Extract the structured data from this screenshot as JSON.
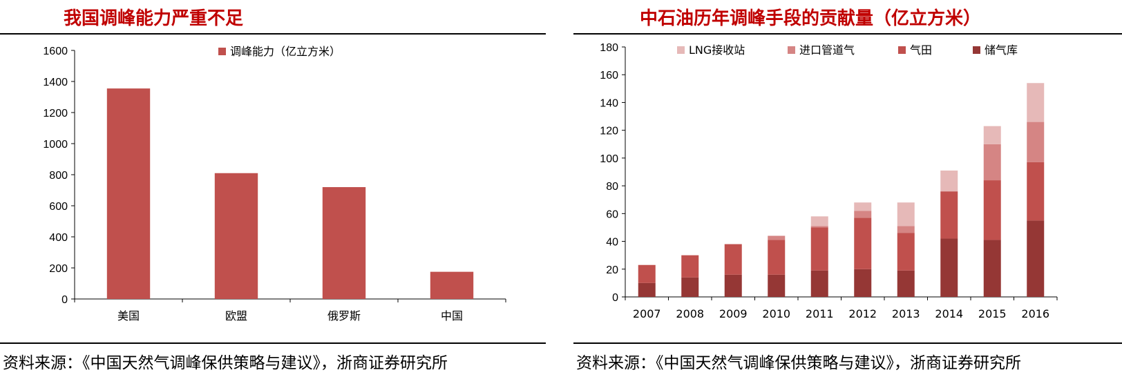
{
  "left_panel": {
    "title": "我国调峰能力严重不足",
    "source": "资料来源：《中国天然气调峰保供策略与建议》，浙商证券研究所"
  },
  "right_panel": {
    "title": "中石油历年调峰手段的贡献量（亿立方米）",
    "source": "资料来源：《中国天然气调峰保供策略与建议》，浙商证券研究所"
  },
  "chart_data": [
    {
      "type": "bar",
      "title": "我国调峰能力严重不足",
      "categories": [
        "美国",
        "欧盟",
        "俄罗斯",
        "中国"
      ],
      "series": [
        {
          "name": "调峰能力（亿立方米）",
          "values": [
            1355,
            810,
            720,
            175
          ],
          "color": "#C0504D"
        }
      ],
      "ylim": [
        0,
        1600
      ],
      "yticks": [
        0,
        200,
        400,
        600,
        800,
        1000,
        1200,
        1400,
        1600
      ],
      "legend": "top",
      "grid": false
    },
    {
      "type": "bar",
      "stacked": true,
      "title": "中石油历年调峰手段的贡献量（亿立方米）",
      "categories": [
        "2007",
        "2008",
        "2009",
        "2010",
        "2011",
        "2012",
        "2013",
        "2014",
        "2015",
        "2016"
      ],
      "series": [
        {
          "name": "储气库",
          "values": [
            10,
            14,
            16,
            16,
            19,
            20,
            19,
            42,
            41,
            55
          ],
          "color": "#953735"
        },
        {
          "name": "气田",
          "values": [
            13,
            16,
            22,
            25,
            31,
            37,
            27,
            34,
            43,
            42
          ],
          "color": "#C0504D"
        },
        {
          "name": "进口管道气",
          "values": [
            0,
            0,
            0,
            3,
            1,
            5,
            5,
            0,
            26,
            29
          ],
          "color": "#D58584"
        },
        {
          "name": "LNG接收站",
          "values": [
            0,
            0,
            0,
            0,
            7,
            6,
            17,
            15,
            13,
            28
          ],
          "color": "#E6B9B8"
        }
      ],
      "legend_order": [
        "LNG接收站",
        "进口管道气",
        "气田",
        "储气库"
      ],
      "ylim": [
        0,
        180
      ],
      "yticks": [
        0,
        20,
        40,
        60,
        80,
        100,
        120,
        140,
        160,
        180
      ],
      "legend": "top",
      "grid": false
    }
  ]
}
